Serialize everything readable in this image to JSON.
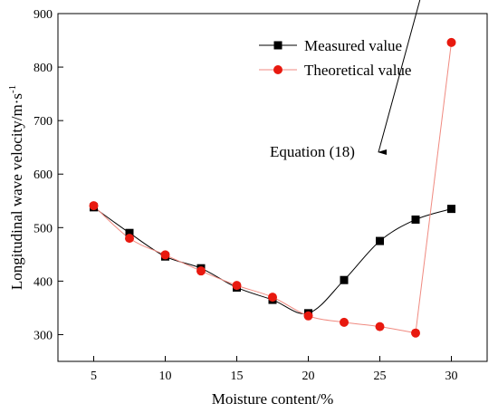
{
  "chart_data": {
    "type": "line",
    "xlabel": "Moisture content/%",
    "ylabel": "Longitudinal wave velocity/m·s",
    "ylabel_superscript": "-1",
    "xlim": [
      2.5,
      32.5
    ],
    "ylim": [
      250,
      900
    ],
    "xticks": [
      5,
      10,
      15,
      20,
      25,
      30
    ],
    "yticks": [
      300,
      400,
      500,
      600,
      700,
      800,
      900
    ],
    "grid": false,
    "legend_position": "top-right",
    "series": [
      {
        "name": "Measured value",
        "marker": "square",
        "color": "#000000",
        "marker_color": "#000000",
        "line_color": "#000000",
        "x": [
          5,
          7.5,
          10,
          12.5,
          15,
          17.5,
          20,
          22.5,
          25,
          27.5,
          30
        ],
        "y": [
          538,
          490,
          446,
          424,
          388,
          365,
          340,
          402,
          475,
          515,
          535
        ]
      },
      {
        "name": "Theoretical value",
        "marker": "circle",
        "color": "#e8190f",
        "marker_color": "#e8190f",
        "line_color": "#f08a80",
        "x": [
          5,
          7.5,
          10,
          12.5,
          15,
          17.5,
          20,
          22.5,
          25,
          27.5,
          30
        ],
        "y": [
          541,
          480,
          449,
          419,
          392,
          370,
          335,
          323,
          315,
          303,
          846
        ]
      }
    ],
    "annotations": [
      {
        "text": "Equation (18)",
        "arrow_to": [
          27.8,
          600
        ]
      }
    ]
  }
}
